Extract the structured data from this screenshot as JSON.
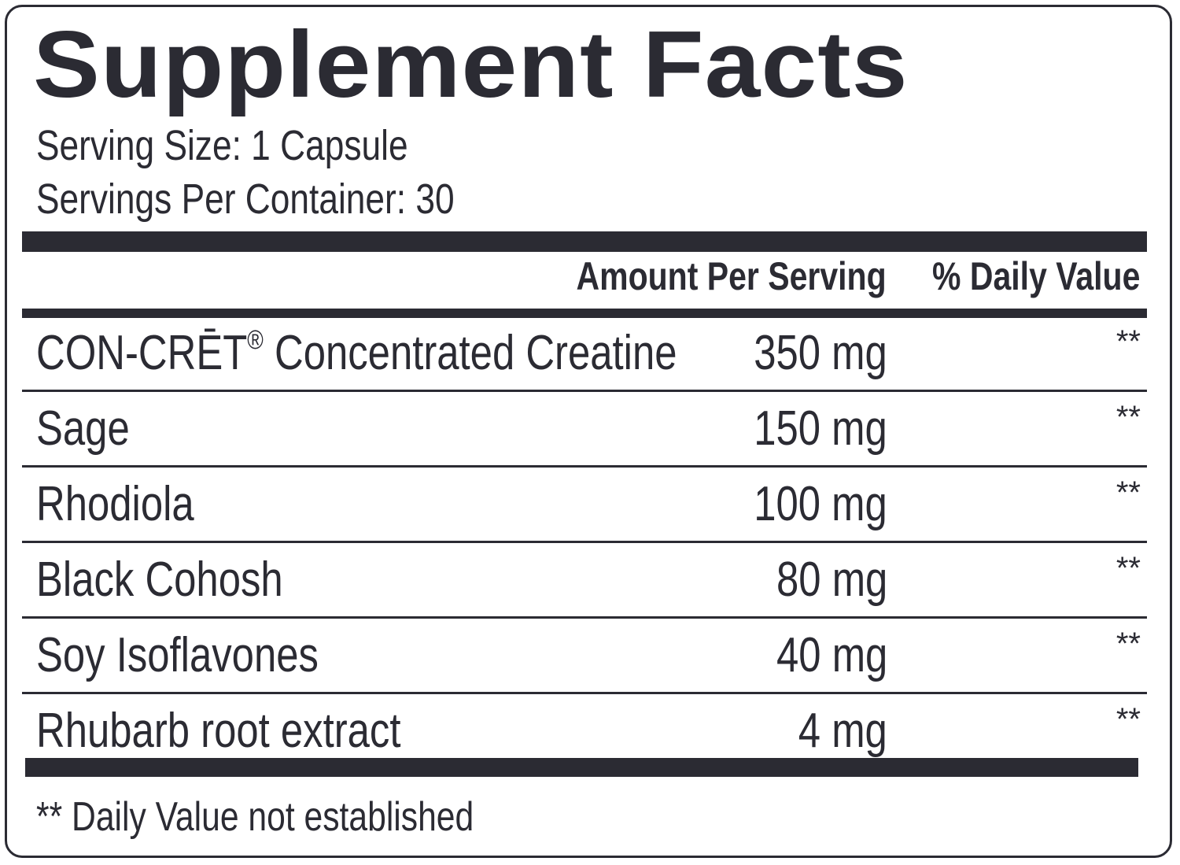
{
  "label": {
    "title": "Supplement Facts",
    "serving_size": "Serving Size: 1 Capsule",
    "servings_per_container": "Servings Per Container: 30",
    "columns": {
      "amount": "Amount Per Serving",
      "daily_value": "% Daily Value"
    },
    "ingredients": [
      {
        "name": "CON-CRĒT",
        "mark": "®",
        "name_rest": " Concentrated Creatine",
        "amount": "350 mg",
        "daily_value": "**"
      },
      {
        "name": "Sage",
        "mark": "",
        "name_rest": "",
        "amount": "150 mg",
        "daily_value": "**"
      },
      {
        "name": "Rhodiola",
        "mark": "",
        "name_rest": "",
        "amount": "100 mg",
        "daily_value": "**"
      },
      {
        "name": "Black Cohosh",
        "mark": "",
        "name_rest": "",
        "amount": "80 mg",
        "daily_value": "**"
      },
      {
        "name": "Soy Isoflavones",
        "mark": "",
        "name_rest": "",
        "amount": "40 mg",
        "daily_value": "**"
      },
      {
        "name": "Rhubarb root extract",
        "mark": "",
        "name_rest": "",
        "amount": "4 mg",
        "daily_value": "**"
      }
    ],
    "footnote": "** Daily Value not established"
  },
  "colors": {
    "ink": "#2b2b33",
    "background": "#ffffff"
  }
}
